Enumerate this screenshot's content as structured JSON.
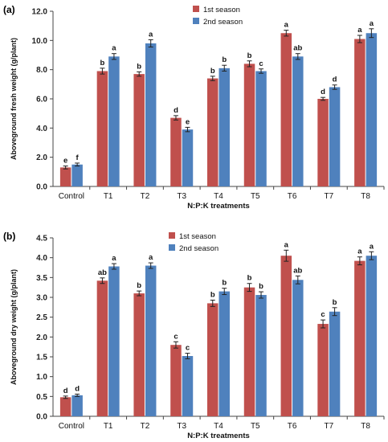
{
  "colors": {
    "season1": "#c0504d",
    "season2": "#4f81bd",
    "axis": "#444444",
    "error": "#222222"
  },
  "chart_data": [
    {
      "type": "bar",
      "panel_label": "(a)",
      "ylabel": "Aboveground fresh weight (g/plant)",
      "xlabel": "N:P:K treatments",
      "categories": [
        "Control",
        "T1",
        "T2",
        "T3",
        "T4",
        "T5",
        "T6",
        "T7",
        "T8"
      ],
      "ylim": [
        0,
        12
      ],
      "yticks": [
        "0.0",
        "2.0",
        "4.0",
        "6.0",
        "8.0",
        "10.0",
        "12.0"
      ],
      "legend_position": "top",
      "series": [
        {
          "name": "1st season",
          "values": [
            1.3,
            7.9,
            7.7,
            4.7,
            7.4,
            8.4,
            10.5,
            6.0,
            10.1
          ],
          "errors": [
            0.1,
            0.2,
            0.15,
            0.15,
            0.15,
            0.2,
            0.2,
            0.1,
            0.25
          ],
          "letters": [
            "e",
            "b",
            "b",
            "d",
            "b",
            "b",
            "a",
            "d",
            "a"
          ]
        },
        {
          "name": "2nd season",
          "values": [
            1.5,
            8.9,
            9.8,
            3.9,
            8.1,
            7.9,
            8.9,
            6.8,
            10.5
          ],
          "errors": [
            0.1,
            0.2,
            0.25,
            0.15,
            0.2,
            0.15,
            0.2,
            0.15,
            0.3
          ],
          "letters": [
            "f",
            "a",
            "a",
            "e",
            "b",
            "c",
            "ab",
            "d",
            "a"
          ]
        }
      ]
    },
    {
      "type": "bar",
      "panel_label": "(b)",
      "ylabel": "Aboveground dry weight (g/plant)",
      "xlabel": "N:P:K treatments",
      "categories": [
        "Control",
        "T1",
        "T2",
        "T3",
        "T4",
        "T5",
        "T6",
        "T7",
        "T8"
      ],
      "ylim": [
        0,
        4.5
      ],
      "yticks": [
        "0.0",
        "0.5",
        "1.0",
        "1.5",
        "2.0",
        "2.5",
        "3.0",
        "3.5",
        "4.0",
        "4.5"
      ],
      "legend_position": "top",
      "series": [
        {
          "name": "1st season",
          "values": [
            0.48,
            3.42,
            3.1,
            1.8,
            2.85,
            3.25,
            4.05,
            2.33,
            3.92
          ],
          "errors": [
            0.03,
            0.07,
            0.06,
            0.08,
            0.08,
            0.1,
            0.14,
            0.1,
            0.1
          ],
          "letters": [
            "d",
            "ab",
            "b",
            "c",
            "b",
            "b",
            "a",
            "c",
            "a"
          ]
        },
        {
          "name": "2nd season",
          "values": [
            0.53,
            3.78,
            3.8,
            1.52,
            3.15,
            3.06,
            3.44,
            2.64,
            4.05
          ],
          "errors": [
            0.03,
            0.07,
            0.07,
            0.07,
            0.08,
            0.08,
            0.1,
            0.1,
            0.1
          ],
          "letters": [
            "d",
            "a",
            "a",
            "c",
            "b",
            "b",
            "ab",
            "b",
            "a"
          ]
        }
      ]
    }
  ]
}
